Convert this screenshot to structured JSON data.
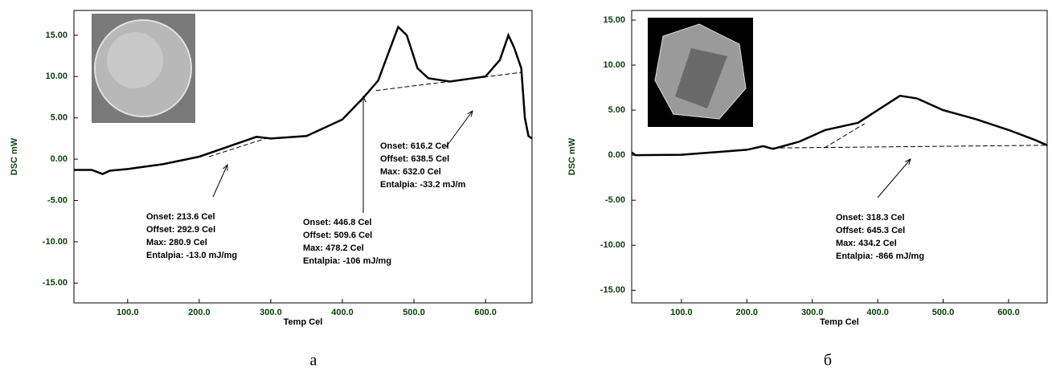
{
  "chart_data": [
    {
      "type": "line",
      "xlabel": "Temp Cel",
      "ylabel": "DSC mW",
      "panel": "а",
      "xlim": [
        25,
        665
      ],
      "ylim": [
        -17.4,
        18
      ],
      "xticks": [
        {
          "value": 100,
          "label": "100.0"
        },
        {
          "value": 200,
          "label": "200.0"
        },
        {
          "value": 300,
          "label": "300.0"
        },
        {
          "value": 400,
          "label": "400.0"
        },
        {
          "value": 500,
          "label": "500.0"
        },
        {
          "value": 600,
          "label": "600.0"
        }
      ],
      "yticks": [
        {
          "value": 15,
          "label": "15.00"
        },
        {
          "value": 10,
          "label": "10.00"
        },
        {
          "value": 5,
          "label": "5.00"
        },
        {
          "value": 0,
          "label": "0.00"
        },
        {
          "value": -5,
          "label": "-5.00"
        },
        {
          "value": -10,
          "label": "-10.00"
        },
        {
          "value": -15,
          "label": "-15.00"
        }
      ],
      "series": [
        {
          "color": "#000000",
          "x": [
            25,
            50,
            65,
            75,
            100,
            150,
            200,
            250,
            280,
            300,
            350,
            400,
            430,
            450,
            465,
            478,
            490,
            505,
            520,
            550,
            600,
            620,
            632,
            640,
            650,
            655,
            660,
            665
          ],
          "values": [
            -1.3,
            -1.3,
            -1.8,
            -1.4,
            -1.2,
            -0.6,
            0.3,
            1.8,
            2.7,
            2.5,
            2.8,
            4.8,
            7.5,
            9.5,
            13,
            16,
            15,
            11,
            9.8,
            9.4,
            10,
            12,
            15,
            13.5,
            11,
            5,
            2.8,
            2.5
          ]
        },
        {
          "color": "#000000",
          "dashed": true,
          "x": [
            213.6,
            292.9
          ],
          "values": [
            0.3,
            2.5
          ]
        },
        {
          "color": "#000000",
          "dashed": true,
          "x": [
            446.8,
            650
          ],
          "values": [
            8.3,
            10.5
          ]
        }
      ],
      "annotations": [
        [
          "Onset: 213.6 Cel",
          "Offset: 292.9 Cel",
          "Max: 280.9 Cel",
          "Entalpia: -13.0 mJ/mg"
        ],
        [
          "Onset: 446.8 Cel",
          "Offset: 509.6 Cel",
          "Max: 478.2 Cel",
          "Entalpia: -106 mJ/mg"
        ],
        [
          "Onset: 616.2 Cel",
          "Offset: 638.5 Cel",
          "Max: 632.0 Cel",
          "Entalpia: -33.2 mJ/m"
        ]
      ]
    },
    {
      "type": "line",
      "xlabel": "Temp Cel",
      "ylabel": "DSC mW",
      "panel": "б",
      "xlim": [
        24,
        659
      ],
      "ylim": [
        -16.4,
        16.07
      ],
      "xticks": [
        {
          "value": 100,
          "label": "100.0"
        },
        {
          "value": 200,
          "label": "200.0"
        },
        {
          "value": 300,
          "label": "300.0"
        },
        {
          "value": 400,
          "label": "400.0"
        },
        {
          "value": 500,
          "label": "500.0"
        },
        {
          "value": 600,
          "label": "600.0"
        }
      ],
      "yticks": [
        {
          "value": 15,
          "label": "15.00"
        },
        {
          "value": 10,
          "label": "10.00"
        },
        {
          "value": 5,
          "label": "5.00"
        },
        {
          "value": 0,
          "label": "0.00"
        },
        {
          "value": -5,
          "label": "-5.00"
        },
        {
          "value": -10,
          "label": "-10.00"
        },
        {
          "value": -15,
          "label": "-15.00"
        }
      ],
      "series": [
        {
          "color": "#000000",
          "x": [
            24,
            30,
            100,
            200,
            225,
            240,
            280,
            320,
            370,
            400,
            434,
            460,
            500,
            550,
            600,
            640,
            659
          ],
          "values": [
            0.3,
            0.0,
            0.05,
            0.6,
            1,
            0.7,
            1.5,
            2.8,
            3.6,
            5,
            6.6,
            6.3,
            5,
            4,
            2.8,
            1.7,
            1.1
          ]
        },
        {
          "color": "#000000",
          "dashed": true,
          "x": [
            240,
            655
          ],
          "values": [
            0.8,
            1.1
          ]
        },
        {
          "color": "#000000",
          "dashed": true,
          "x": [
            318.3,
            380
          ],
          "values": [
            0.8,
            3.5
          ]
        }
      ],
      "annotations": [
        [
          "Onset: 318.3 Cel",
          "Offset: 645.3 Cel",
          "Max: 434.2 Cel",
          "Entalpia: -866 mJ/mg"
        ]
      ]
    }
  ]
}
